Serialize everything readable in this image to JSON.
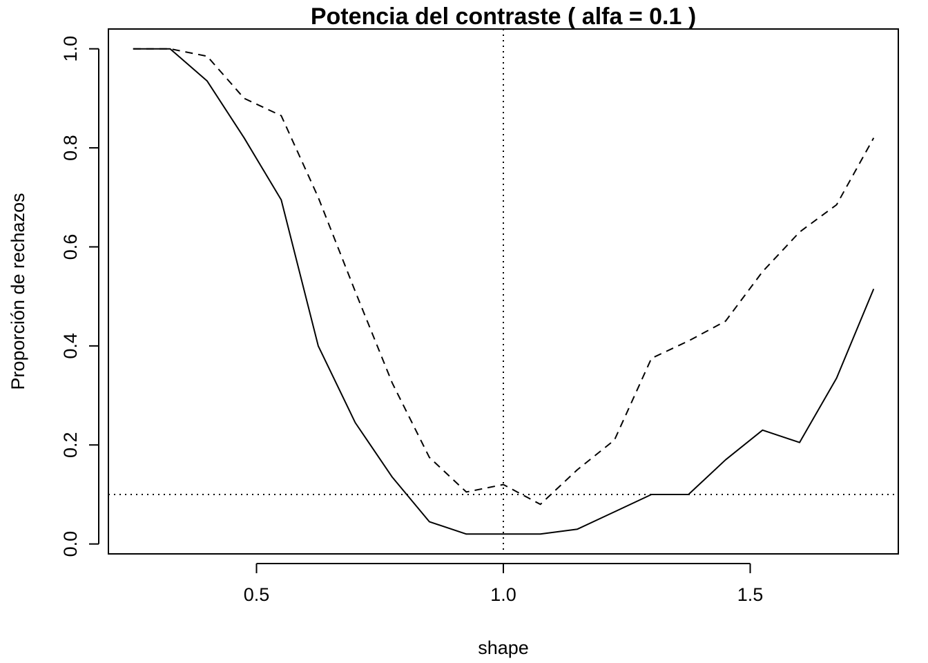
{
  "chart_data": {
    "type": "line",
    "title": "Potencia del contraste ( alfa = 0.1 )",
    "xlabel": "shape",
    "ylabel": "Proporción de rechazos",
    "xlim": [
      0.2,
      1.8
    ],
    "ylim": [
      -0.02,
      1.04
    ],
    "xticks": [
      0.5,
      1.0,
      1.5
    ],
    "xtick_labels": [
      "0.5",
      "1.0",
      "1.5"
    ],
    "yticks": [
      0.0,
      0.2,
      0.4,
      0.6,
      0.8,
      1.0
    ],
    "ytick_labels": [
      "0.0",
      "0.2",
      "0.4",
      "0.6",
      "0.8",
      "1.0"
    ],
    "grid": false,
    "reference_lines": [
      {
        "orientation": "vertical",
        "value": 1.0,
        "style": "dotted"
      },
      {
        "orientation": "horizontal",
        "value": 0.1,
        "style": "dotted"
      }
    ],
    "x": [
      0.25,
      0.325,
      0.4,
      0.475,
      0.55,
      0.625,
      0.7,
      0.775,
      0.85,
      0.925,
      1.0,
      1.075,
      1.15,
      1.225,
      1.3,
      1.375,
      1.45,
      1.525,
      1.6,
      1.675,
      1.75
    ],
    "series": [
      {
        "style": "solid",
        "values": [
          1.0,
          1.0,
          0.935,
          0.82,
          0.695,
          0.4,
          0.245,
          0.135,
          0.045,
          0.02,
          0.02,
          0.02,
          0.03,
          0.065,
          0.1,
          0.1,
          0.17,
          0.23,
          0.205,
          0.335,
          0.515
        ]
      },
      {
        "style": "dashed",
        "values": [
          1.0,
          1.0,
          0.985,
          0.9,
          0.865,
          0.7,
          0.51,
          0.325,
          0.175,
          0.105,
          0.12,
          0.08,
          0.15,
          0.21,
          0.375,
          0.41,
          0.45,
          0.55,
          0.63,
          0.685,
          0.82
        ]
      }
    ]
  }
}
